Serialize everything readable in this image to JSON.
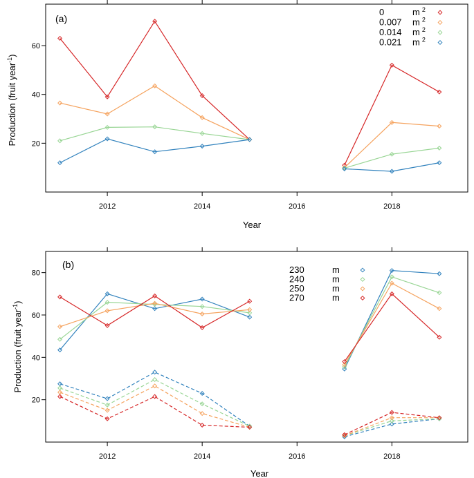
{
  "chart_data": [
    {
      "type": "line",
      "panel_label": "(a)",
      "xlabel": "Year",
      "ylabel": "Production (fruit year",
      "ylabel_sup": "-1",
      "ylabel_close": ")",
      "xlim": [
        2010.7,
        2019.6
      ],
      "ylim": [
        0,
        77
      ],
      "xticks": [
        2012,
        2014,
        2016,
        2018
      ],
      "yticks": [
        20,
        40,
        60
      ],
      "legend": {
        "placement": "top-right",
        "unit": "m",
        "unit_sup": "2"
      },
      "segments": [
        [
          2011,
          2012,
          2013,
          2014,
          2015
        ],
        [
          2017,
          2018,
          2019
        ]
      ],
      "series": [
        {
          "name": "0",
          "color": "#d62728",
          "dash": false,
          "values": [
            [
              63,
              39,
              70,
              39.5,
              21.5
            ],
            [
              11,
              52,
              41
            ]
          ]
        },
        {
          "name": "0.007",
          "color": "#f5a25d",
          "dash": false,
          "values": [
            [
              36.5,
              32,
              43.5,
              30.5,
              21.5
            ],
            [
              10,
              28.5,
              27
            ]
          ]
        },
        {
          "name": "0.014",
          "color": "#98d594",
          "dash": false,
          "values": [
            [
              21,
              26.5,
              26.7,
              24,
              21.5
            ],
            [
              9.8,
              15.5,
              18
            ]
          ]
        },
        {
          "name": "0.021",
          "color": "#3182bd",
          "dash": false,
          "values": [
            [
              12,
              21.8,
              16.5,
              18.8,
              21.5
            ],
            [
              9.5,
              8.5,
              12
            ]
          ]
        }
      ]
    },
    {
      "type": "line",
      "panel_label": "(b)",
      "xlabel": "Year",
      "ylabel": "Production (fruit year",
      "ylabel_sup": "-1",
      "ylabel_close": ")",
      "xlim": [
        2010.7,
        2019.6
      ],
      "ylim": [
        0,
        90
      ],
      "xticks": [
        2012,
        2014,
        2016,
        2018
      ],
      "yticks": [
        20,
        40,
        60,
        80
      ],
      "legend": {
        "placement": "top-right",
        "unit": "m",
        "unit_sup": ""
      },
      "segments": [
        [
          2011,
          2012,
          2013,
          2014,
          2015
        ],
        [
          2017,
          2018,
          2019
        ]
      ],
      "series": [
        {
          "name": "230",
          "color": "#3182bd",
          "dash": false,
          "values": [
            [
              43.5,
              70,
              63,
              67.5,
              59
            ],
            [
              34.5,
              81,
              79.5
            ]
          ]
        },
        {
          "name": "240",
          "color": "#98d594",
          "dash": false,
          "values": [
            [
              48.5,
              66,
              65,
              64,
              61
            ],
            [
              35.5,
              78,
              70.5
            ]
          ]
        },
        {
          "name": "250",
          "color": "#f5a25d",
          "dash": false,
          "values": [
            [
              54.5,
              62,
              65.5,
              60.5,
              62.5
            ],
            [
              36.5,
              75,
              63
            ]
          ]
        },
        {
          "name": "270",
          "color": "#d62728",
          "dash": false,
          "values": [
            [
              68.5,
              55,
              69,
              54,
              66.5
            ],
            [
              38,
              70,
              49.5
            ]
          ]
        },
        {
          "name": "230",
          "color": "#3182bd",
          "dash": true,
          "in_legend": false,
          "values": [
            [
              27.5,
              20.5,
              33,
              23,
              7.5
            ],
            [
              2.5,
              8.5,
              11
            ]
          ]
        },
        {
          "name": "240",
          "color": "#98d594",
          "dash": true,
          "in_legend": false,
          "values": [
            [
              25.5,
              17.5,
              29.5,
              18,
              7.5
            ],
            [
              3,
              10,
              11
            ]
          ]
        },
        {
          "name": "250",
          "color": "#f5a25d",
          "dash": true,
          "in_legend": false,
          "values": [
            [
              23.5,
              15,
              26.5,
              13.5,
              7
            ],
            [
              3,
              11.5,
              11.5
            ]
          ]
        },
        {
          "name": "270",
          "color": "#d62728",
          "dash": true,
          "in_legend": false,
          "values": [
            [
              21.5,
              11,
              21.5,
              8,
              7
            ],
            [
              3.5,
              14,
              11.5
            ]
          ]
        }
      ]
    }
  ]
}
